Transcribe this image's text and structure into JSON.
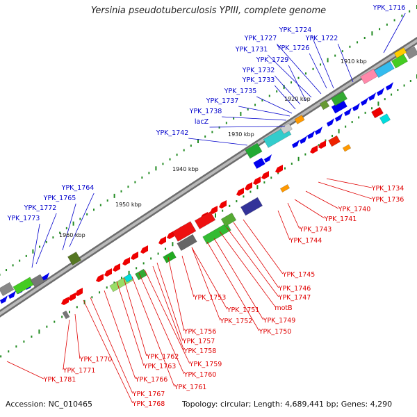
{
  "title": "Yersinia pseudotuberculosis YPIII, complete genome",
  "footer": {
    "accession": "Accession: NC_010465",
    "summary": "Topology: circular; Length: 4,689,441 bp; Genes: 4,290"
  },
  "colors": {
    "forward_label": "#0000cc",
    "reverse_label": "#e00000",
    "backbone": "#8a8a8a",
    "tick": "#228b22"
  },
  "scale_labels": [
    "1910 kbp",
    "1920 kbp",
    "1930 kbp",
    "1940 kbp",
    "1950 kbp",
    "1960 kbp"
  ],
  "forward_genes": [
    "YPK_1716",
    "YPK_1724",
    "YPK_1722",
    "YPK_1727",
    "YPK_1726",
    "YPK_1731",
    "YPK_1729",
    "YPK_1732",
    "YPK_1733",
    "YPK_1735",
    "YPK_1737",
    "YPK_1738",
    "lacZ",
    "YPK_1742",
    "YPK_1764",
    "YPK_1765",
    "YPK_1772",
    "YPK_1773"
  ],
  "reverse_genes": [
    "YPK_1734",
    "YPK_1736",
    "YPK_1740",
    "YPK_1741",
    "YPK_1743",
    "YPK_1744",
    "YPK_1745",
    "YPK_1746",
    "YPK_1747",
    "motB",
    "YPK_1749",
    "YPK_1750",
    "YPK_1751",
    "YPK_1752",
    "YPK_1753",
    "YPK_1756",
    "YPK_1757",
    "YPK_1758",
    "YPK_1759",
    "YPK_1760",
    "YPK_1761",
    "YPK_1762",
    "YPK_1763",
    "YPK_1766",
    "YPK_1767",
    "YPK_1768",
    "YPK_1770",
    "YPK_1771",
    "YPK_1781"
  ]
}
